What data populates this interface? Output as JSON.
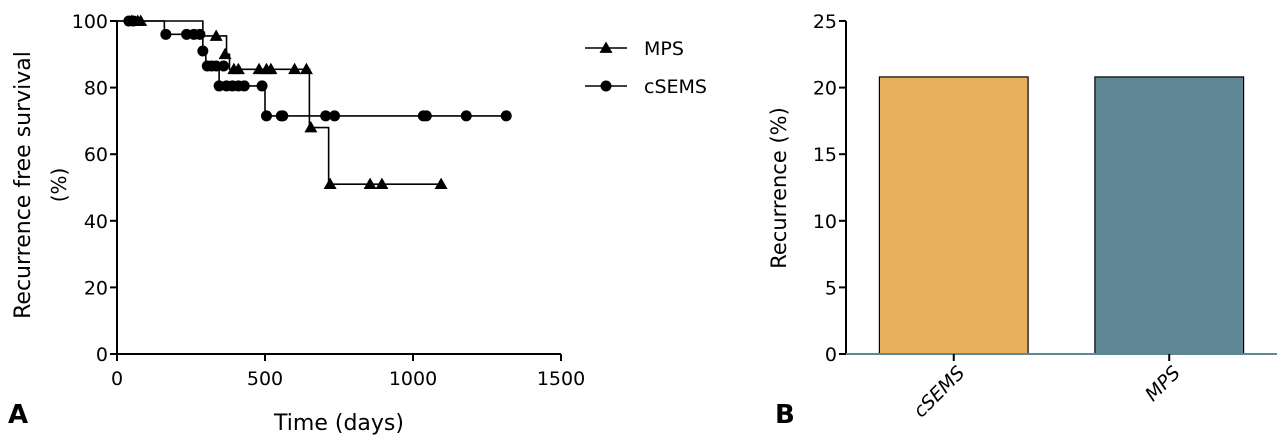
{
  "panel_labels": {
    "a": "A",
    "b": "B"
  },
  "chart_data": [
    {
      "type": "line",
      "xlabel": "Time (days)",
      "ylabel_line1": "Recurrence free survival",
      "ylabel_line2": "(%)",
      "xlim": [
        0,
        1500
      ],
      "ylim": [
        0,
        100
      ],
      "xticks": [
        "0",
        "500",
        "1000",
        "1500"
      ],
      "yticks": [
        "0",
        "20",
        "40",
        "60",
        "80",
        "100"
      ],
      "grid": false,
      "legend_position": "top-right",
      "series": [
        {
          "name": "MPS",
          "marker": "triangle",
          "steps": [
            [
              0,
              100
            ],
            [
              290,
              100
            ],
            [
              290,
              95.5
            ],
            [
              370,
              95.5
            ],
            [
              370,
              90
            ],
            [
              380,
              90
            ],
            [
              380,
              85.5
            ],
            [
              650,
              85.5
            ],
            [
              650,
              68
            ],
            [
              715,
              68
            ],
            [
              715,
              51
            ],
            [
              1095,
              51
            ]
          ],
          "censored": [
            [
              50,
              100
            ],
            [
              70,
              100
            ],
            [
              80,
              100
            ],
            [
              335,
              95.5
            ],
            [
              365,
              90
            ],
            [
              395,
              85.5
            ],
            [
              410,
              85.5
            ],
            [
              480,
              85.5
            ],
            [
              505,
              85.5
            ],
            [
              520,
              85.5
            ],
            [
              600,
              85.5
            ],
            [
              640,
              85.5
            ],
            [
              655,
              68
            ],
            [
              720,
              51
            ],
            [
              855,
              51
            ],
            [
              895,
              51
            ],
            [
              1095,
              51
            ]
          ]
        },
        {
          "name": "cSEMS",
          "marker": "circle",
          "steps": [
            [
              0,
              100
            ],
            [
              160,
              100
            ],
            [
              160,
              96
            ],
            [
              290,
              96
            ],
            [
              290,
              91
            ],
            [
              300,
              91
            ],
            [
              300,
              86.5
            ],
            [
              345,
              86.5
            ],
            [
              345,
              80.5
            ],
            [
              500,
              80.5
            ],
            [
              500,
              71.5
            ],
            [
              1310,
              71.5
            ]
          ],
          "censored": [
            [
              40,
              100
            ],
            [
              55,
              100
            ],
            [
              165,
              96
            ],
            [
              235,
              96
            ],
            [
              260,
              96
            ],
            [
              280,
              96
            ],
            [
              290,
              91
            ],
            [
              305,
              86.5
            ],
            [
              320,
              86.5
            ],
            [
              335,
              86.5
            ],
            [
              360,
              86.5
            ],
            [
              345,
              80.5
            ],
            [
              370,
              80.5
            ],
            [
              390,
              80.5
            ],
            [
              410,
              80.5
            ],
            [
              430,
              80.5
            ],
            [
              490,
              80.5
            ],
            [
              505,
              71.5
            ],
            [
              555,
              71.5
            ],
            [
              560,
              71.5
            ],
            [
              705,
              71.5
            ],
            [
              735,
              71.5
            ],
            [
              1035,
              71.5
            ],
            [
              1045,
              71.5
            ],
            [
              1180,
              71.5
            ],
            [
              1315,
              71.5
            ]
          ]
        }
      ]
    },
    {
      "type": "bar",
      "ylabel": "Recurrence (%)",
      "categories": [
        "cSEMS",
        "MPS"
      ],
      "values": [
        20.8,
        20.8
      ],
      "colors": [
        "#E8B05C",
        "#5F8796"
      ],
      "ylim": [
        0,
        25
      ],
      "yticks": [
        "0",
        "5",
        "10",
        "15",
        "20",
        "25"
      ],
      "grid": false
    }
  ]
}
